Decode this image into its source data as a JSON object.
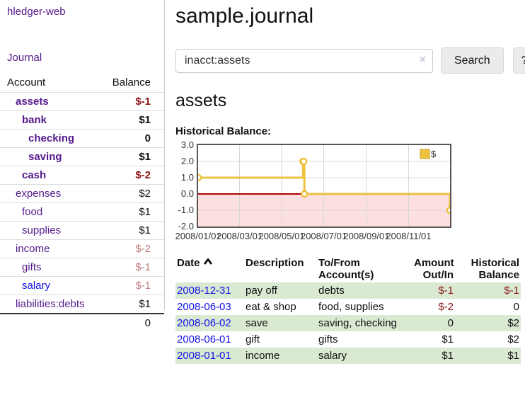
{
  "header": {
    "title": "sample.journal"
  },
  "sidebar": {
    "app_title": "hledger-web",
    "nav": {
      "journal_label": "Journal"
    },
    "table": {
      "account_header": "Account",
      "balance_header": "Balance"
    },
    "accounts": [
      {
        "name": "assets",
        "level": 1,
        "bold": true,
        "balance": "$-1",
        "balance_color": "neg"
      },
      {
        "name": "bank",
        "level": 2,
        "bold": true,
        "balance": "$1",
        "balance_color": "pos"
      },
      {
        "name": "checking",
        "level": 3,
        "bold": true,
        "balance": "0",
        "balance_color": "pos"
      },
      {
        "name": "saving",
        "level": 3,
        "bold": true,
        "balance": "$1",
        "balance_color": "pos"
      },
      {
        "name": "cash",
        "level": 2,
        "bold": true,
        "balance": "$-2",
        "balance_color": "neg"
      },
      {
        "name": "expenses",
        "level": 1,
        "bold": false,
        "balance": "$2",
        "balance_color": "pos"
      },
      {
        "name": "food",
        "level": 2,
        "bold": false,
        "balance": "$1",
        "balance_color": "pos"
      },
      {
        "name": "supplies",
        "level": 2,
        "bold": false,
        "balance": "$1",
        "balance_color": "pos"
      },
      {
        "name": "income",
        "level": 1,
        "bold": false,
        "balance": "$-2",
        "balance_color": "neg-faded"
      },
      {
        "name": "gifts",
        "level": 2,
        "bold": false,
        "balance": "$-1",
        "balance_color": "neg-faded"
      },
      {
        "name": "salary",
        "level": 2,
        "bold": false,
        "balance": "$-1",
        "balance_color": "neg-faded",
        "link_color": "blue"
      },
      {
        "name": "liabilities:debts",
        "level": 1,
        "bold": false,
        "balance": "$1",
        "balance_color": "pos"
      }
    ],
    "total": "0"
  },
  "search": {
    "value": "inacct:assets",
    "clear_icon": "×",
    "button_label": "Search",
    "help_label": "?"
  },
  "account_page": {
    "title": "assets",
    "chart_label": "Historical Balance:"
  },
  "chart_data": {
    "type": "line",
    "title": "Historical Balance",
    "style": "step",
    "legend": {
      "label": "$",
      "position": "top-right"
    },
    "xlim": [
      "2008-01-01",
      "2008-12-31"
    ],
    "ylim": [
      -2,
      3
    ],
    "grid": true,
    "negative_region_shaded": true,
    "y_ticks": [
      {
        "value": 3,
        "label": "3.0"
      },
      {
        "value": 2,
        "label": "2.0"
      },
      {
        "value": 1,
        "label": "1.0"
      },
      {
        "value": 0,
        "label": "0.0"
      },
      {
        "value": -1,
        "label": "-1.0"
      },
      {
        "value": -2,
        "label": "-2.0"
      }
    ],
    "x_ticks": [
      {
        "date": "2008-01-01",
        "label": "2008/01/01"
      },
      {
        "date": "2008-03-01",
        "label": "2008/03/01"
      },
      {
        "date": "2008-05-01",
        "label": "2008/05/01"
      },
      {
        "date": "2008-07-01",
        "label": "2008/07/01"
      },
      {
        "date": "2008-09-01",
        "label": "2008/09/01"
      },
      {
        "date": "2008-11-01",
        "label": "2008/11/01"
      }
    ],
    "series": [
      {
        "name": "$",
        "points": [
          {
            "date": "2008-01-01",
            "value": 1
          },
          {
            "date": "2008-06-01",
            "value": 2
          },
          {
            "date": "2008-06-02",
            "value": 2
          },
          {
            "date": "2008-06-03",
            "value": 0
          },
          {
            "date": "2008-12-31",
            "value": -1
          }
        ]
      }
    ]
  },
  "register": {
    "headers": {
      "date": "Date",
      "sort_direction": "ascending",
      "description": "Description",
      "accounts": "To/From\nAccount(s)",
      "amount": "Amount\nOut/In",
      "balance": "Historical\nBalance"
    },
    "rows": [
      {
        "date": "2008-12-31",
        "description": "pay off",
        "accounts": "debts",
        "amount": "$-1",
        "amount_negative": true,
        "balance": "$-1",
        "balance_negative": true
      },
      {
        "date": "2008-06-03",
        "description": "eat & shop",
        "accounts": "food, supplies",
        "amount": "$-2",
        "amount_negative": true,
        "balance": "0",
        "balance_negative": false
      },
      {
        "date": "2008-06-02",
        "description": "save",
        "accounts": "saving, checking",
        "amount": "0",
        "amount_negative": false,
        "balance": "$2",
        "balance_negative": false
      },
      {
        "date": "2008-06-01",
        "description": "gift",
        "accounts": "gifts",
        "amount": "$1",
        "amount_negative": false,
        "balance": "$2",
        "balance_negative": false
      },
      {
        "date": "2008-01-01",
        "description": "income",
        "accounts": "salary",
        "amount": "$1",
        "amount_negative": false,
        "balance": "$1",
        "balance_negative": false
      }
    ]
  },
  "colors": {
    "link_purple": "#551a8b",
    "link_blue": "#1414e8",
    "negative_strong": "#8b1414",
    "negative_faded": "#bd7e7e",
    "row_stripe_green": "#d9e9d2",
    "chart_line_gold": "#edc240",
    "chart_negative_fill": "#fcdfdf",
    "chart_zero_line": "#b30000",
    "chart_grid": "#d8d8d8",
    "chart_border": "#555555"
  }
}
